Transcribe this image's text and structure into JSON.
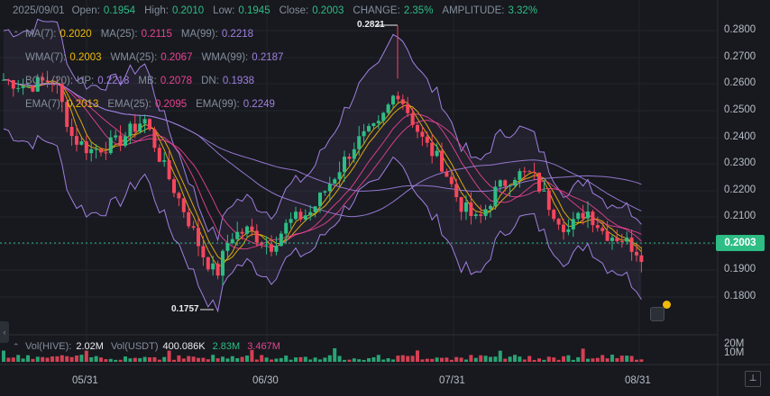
{
  "header": {
    "date": "2025/09/01",
    "open_label": "Open:",
    "open": "0.1954",
    "high_label": "High:",
    "high": "0.2010",
    "low_label": "Low:",
    "low": "0.1945",
    "close_label": "Close:",
    "close": "0.2003",
    "change_label": "CHANGE:",
    "change": "2.35%",
    "amplitude_label": "AMPLITUDE:",
    "amplitude": "3.32%"
  },
  "indicators": {
    "ma": {
      "k1": "MA(7):",
      "v1": "0.2020",
      "k2": "MA(25):",
      "v2": "0.2115",
      "k3": "MA(99):",
      "v3": "0.2218"
    },
    "wma": {
      "k1": "WMA(7):",
      "v1": "0.2003",
      "k2": "WMA(25):",
      "v2": "0.2067",
      "k3": "WMA(99):",
      "v3": "0.2187"
    },
    "boll": {
      "k0": "BOLL(20):",
      "k1": "UP:",
      "v1": "0.2218",
      "k2": "MB:",
      "v2": "0.2078",
      "k3": "DN:",
      "v3": "0.1938"
    },
    "ema": {
      "k1": "EMA(7):",
      "v1": "0.2013",
      "k2": "EMA(25):",
      "v2": "0.2095",
      "k3": "EMA(99):",
      "v3": "0.2249"
    }
  },
  "colors": {
    "up": "#2ebd85",
    "down": "#f6465d",
    "ma7": "#f0b90b",
    "ma25": "#e84393",
    "ma99": "#a17fe0",
    "boll": "#a17fe0",
    "bg": "#17191e",
    "grid": "#22252c"
  },
  "y_axis": [
    "0.2800",
    "0.2700",
    "0.2600",
    "0.2500",
    "0.2400",
    "0.2300",
    "0.2200",
    "0.2100",
    "0.2000",
    "0.1900",
    "0.1800"
  ],
  "x_axis": [
    "05/31",
    "06/30",
    "07/31",
    "08/31"
  ],
  "last_price": "0.2003",
  "high_mark": "0.2821",
  "low_mark": "0.1757",
  "volume": {
    "k1": "Vol(HIVE):",
    "v1": "2.02M",
    "k2": "Vol(USDT)",
    "v2": "400.086K",
    "v3": "2.83M",
    "v4": "3.467M",
    "axis_top": "20M",
    "axis_bottom": "10M"
  },
  "chart_data": {
    "type": "candlestick",
    "title": "",
    "ylim": [
      0.174,
      0.286
    ],
    "x_ticks": [
      "05/31",
      "06/30",
      "07/31",
      "08/31"
    ],
    "candles": []
  },
  "icons": {
    "note": "note-icon",
    "toggle": "chevron-left-icon",
    "scale": "measure-icon"
  }
}
